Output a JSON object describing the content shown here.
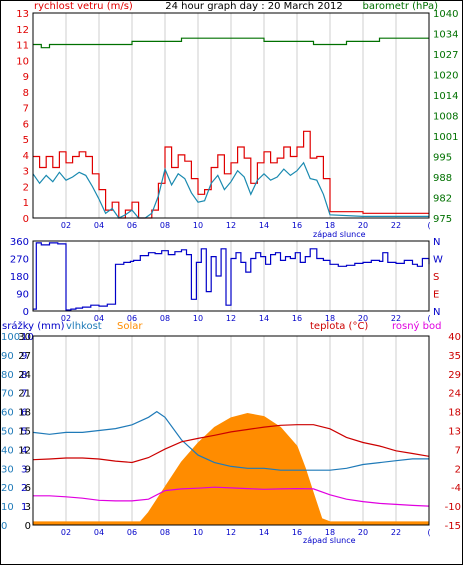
{
  "colors": {
    "wind": "#e00000",
    "wind_gust_line": "#1a8ab0",
    "barometer": "#007000",
    "direction": "#0000c8",
    "blue_axis": "#0000c8",
    "precip": "#0000c8",
    "humidity": "#1f7ab8",
    "solar": "#ff8c00",
    "temperature": "#cc0000",
    "dewpoint": "#e000e0",
    "grid": "#cfcfcf"
  },
  "chart_data": [
    {
      "type": "line",
      "panel": "wind-barometer",
      "title": "24 hour graph day : 20 March 2012",
      "ylabel_left": "rychlost vetru (m/s)",
      "ylabel_right": "barometr (hPa)",
      "sunset_label": "západ slunce",
      "x_ticks": [
        "02",
        "04",
        "06",
        "08",
        "10",
        "12",
        "14",
        "16",
        "18",
        "20",
        "22",
        "("
      ],
      "y_ticks_left": [
        "0",
        "1",
        "2",
        "3",
        "4",
        "5",
        "6",
        "7",
        "8",
        "9",
        "10",
        "11",
        "12",
        "13"
      ],
      "y_ticks_right": [
        "975",
        "982",
        "988",
        "995",
        "1001",
        "1008",
        "1014",
        "1020",
        "1027",
        "1034",
        "1040"
      ],
      "ylim_left": [
        0,
        13
      ],
      "ylim_right": [
        975,
        1040
      ],
      "grid": true,
      "series": [
        {
          "role": "wind-gust",
          "x": [
            0,
            0.4,
            0.8,
            1.2,
            1.6,
            2,
            2.4,
            2.8,
            3.2,
            3.6,
            4,
            4.4,
            4.8,
            5.2,
            5.6,
            6,
            6.4,
            6.8,
            7.2,
            7.6,
            8,
            8.4,
            8.8,
            9.2,
            9.6,
            10,
            10.4,
            10.8,
            11.2,
            11.6,
            12,
            12.4,
            12.8,
            13.2,
            13.6,
            14,
            14.4,
            14.8,
            15.2,
            15.6,
            16,
            16.4,
            16.8,
            17.2,
            17.6,
            18,
            20,
            22,
            24
          ],
          "values": [
            3.9,
            3.2,
            3.9,
            3.2,
            4.2,
            3.5,
            3.9,
            4.2,
            3.9,
            2.8,
            1.8,
            0.5,
            1,
            0,
            0.5,
            1,
            0,
            0,
            0.5,
            2.2,
            4.5,
            3.2,
            4,
            3.6,
            2.5,
            1.5,
            1.8,
            3.2,
            4,
            2.8,
            3.5,
            4.5,
            3.8,
            2.2,
            3.5,
            4.2,
            3.5,
            3.8,
            4.5,
            3.9,
            4.5,
            5.5,
            3.8,
            3.9,
            2.5,
            0.4,
            0.3,
            0.3,
            0.3
          ]
        },
        {
          "role": "wind-speed",
          "x": [
            0,
            0.4,
            0.8,
            1.2,
            1.6,
            2,
            2.4,
            2.8,
            3.2,
            3.6,
            4,
            4.4,
            4.8,
            5.2,
            5.6,
            6,
            6.4,
            6.8,
            7.2,
            7.6,
            8,
            8.4,
            8.8,
            9.2,
            9.6,
            10,
            10.4,
            10.8,
            11.2,
            11.6,
            12,
            12.4,
            12.8,
            13.2,
            13.6,
            14,
            14.4,
            14.8,
            15.2,
            15.6,
            16,
            16.4,
            16.8,
            17.2,
            17.6,
            18,
            20,
            22,
            24
          ],
          "values": [
            2.8,
            2.2,
            2.7,
            2.3,
            2.9,
            2.4,
            2.6,
            2.9,
            2.7,
            2,
            1.2,
            0.3,
            0.6,
            0,
            0.2,
            0.5,
            0,
            0,
            0.3,
            1.4,
            3.1,
            2.1,
            2.8,
            2.5,
            1.6,
            1,
            1.1,
            2.2,
            2.7,
            1.8,
            2.3,
            3,
            2.6,
            1.5,
            2.4,
            2.8,
            2.4,
            2.6,
            3.1,
            2.7,
            3,
            3.5,
            2.5,
            2.4,
            1.5,
            0.2,
            0.1,
            0.1,
            0.1
          ]
        },
        {
          "role": "barometer",
          "x": [
            0,
            0.5,
            1,
            2,
            3,
            4,
            5,
            6,
            7,
            8,
            9,
            10,
            11,
            12,
            13,
            14,
            15,
            16,
            17,
            18,
            19,
            20,
            21,
            22,
            23,
            24
          ],
          "values": [
            1030,
            1029,
            1030,
            1030,
            1030,
            1030,
            1030,
            1031,
            1031,
            1031,
            1032,
            1032,
            1032,
            1032,
            1032,
            1031,
            1031,
            1031,
            1030,
            1030,
            1031,
            1031,
            1032,
            1032,
            1032,
            1032
          ]
        }
      ]
    },
    {
      "type": "line",
      "panel": "wind-direction",
      "x_ticks": [
        "02",
        "04",
        "06",
        "08",
        "10",
        "12",
        "14",
        "16",
        "18",
        "20",
        "22",
        "("
      ],
      "y_ticks_left": [
        "0",
        "90",
        "180",
        "270",
        "360"
      ],
      "y_ticks_right": [
        "N",
        "E",
        "S",
        "W",
        "N"
      ],
      "ylim": [
        0,
        360
      ],
      "grid": true,
      "series": [
        {
          "role": "direction",
          "x": [
            0,
            0.2,
            0.5,
            1,
            1.5,
            2,
            2.3,
            2.6,
            3,
            3.5,
            4,
            4.5,
            5,
            5.5,
            5.9,
            6.1,
            6.5,
            7,
            7.4,
            7.8,
            8.2,
            8.6,
            9,
            9.3,
            9.6,
            9.9,
            10.2,
            10.5,
            10.8,
            11.1,
            11.4,
            11.7,
            12,
            12.3,
            12.6,
            12.9,
            13.2,
            13.5,
            13.8,
            14.1,
            14.4,
            14.7,
            15,
            15.3,
            15.6,
            15.9,
            16.2,
            16.5,
            16.8,
            17.2,
            17.6,
            18,
            18.5,
            19,
            19.5,
            20,
            20.5,
            21,
            21.2,
            21.5,
            22,
            22.5,
            23,
            23.3,
            23.6,
            24
          ],
          "values": [
            10,
            350,
            340,
            350,
            345,
            5,
            10,
            15,
            20,
            30,
            25,
            35,
            240,
            250,
            255,
            260,
            285,
            300,
            295,
            310,
            290,
            305,
            315,
            290,
            60,
            250,
            320,
            100,
            280,
            180,
            320,
            30,
            270,
            300,
            250,
            200,
            270,
            300,
            280,
            240,
            290,
            300,
            260,
            280,
            270,
            300,
            250,
            280,
            320,
            270,
            260,
            240,
            230,
            235,
            245,
            250,
            260,
            255,
            300,
            250,
            245,
            260,
            240,
            230,
            270,
            240
          ]
        }
      ]
    },
    {
      "type": "area",
      "panel": "temperature-humidity-solar",
      "legend": [
        "srážky (mm)",
        "vlhkost",
        "Solar",
        "teplota (°C)",
        "rosný bod"
      ],
      "sunset_label": "západ slunce",
      "x_ticks": [
        "02",
        "04",
        "06",
        "08",
        "10",
        "12",
        "14",
        "16",
        "18",
        "20",
        "22",
        "("
      ],
      "y_ticks_precip": [
        "0",
        "1",
        "2",
        "3",
        "4",
        "5",
        "6",
        "7",
        "8",
        "9",
        "10"
      ],
      "y_ticks_humidity": [
        "0",
        "10",
        "20",
        "30",
        "40",
        "50",
        "60",
        "70",
        "80",
        "90",
        "100"
      ],
      "y_ticks_solar": [
        "0",
        "3",
        "6",
        "9",
        "12",
        "15",
        "18",
        "21",
        "24",
        "27",
        "30"
      ],
      "y_ticks_temp": [
        "-15",
        "-10",
        "-4",
        "2",
        "7",
        "13",
        "18",
        "24",
        "29",
        "35",
        "40"
      ],
      "y_ticks_dew": [
        "-15",
        "-10",
        "-4",
        "2",
        "7",
        "13",
        "18",
        "24",
        "29",
        "35",
        "40"
      ],
      "ylim_humidity": [
        0,
        100
      ],
      "ylim_temp": [
        -15,
        40
      ],
      "ylim_solar": [
        0,
        30
      ],
      "grid": true,
      "series": [
        {
          "role": "solar",
          "x": [
            0,
            6.5,
            7,
            8,
            9,
            10,
            11,
            12,
            13,
            14,
            15,
            16,
            16.5,
            17,
            17.5,
            18,
            24
          ],
          "values": [
            0.5,
            0.5,
            2,
            6,
            10,
            13,
            15.5,
            17,
            17.7,
            17.2,
            15.5,
            12.5,
            9,
            5,
            1,
            0.5,
            0.5
          ]
        },
        {
          "role": "humidity",
          "x": [
            0,
            1,
            2,
            3,
            4,
            5,
            6,
            7,
            7.5,
            8,
            9,
            10,
            11,
            12,
            13,
            14,
            15,
            16,
            17,
            18,
            19,
            20,
            21,
            22,
            23,
            24
          ],
          "values": [
            49,
            48,
            49,
            49,
            50,
            51,
            53,
            57,
            60,
            57,
            45,
            37,
            33,
            31,
            30,
            30,
            29,
            29,
            29,
            29,
            30,
            32,
            33,
            34,
            35,
            35
          ]
        },
        {
          "role": "temperature",
          "x": [
            0,
            1,
            2,
            3,
            4,
            5,
            6,
            7,
            8,
            9,
            10,
            11,
            12,
            13,
            14,
            15,
            16,
            17,
            18,
            19,
            20,
            21,
            22,
            23,
            24
          ],
          "values": [
            4,
            4.2,
            4.5,
            4.5,
            4.2,
            3.6,
            3.2,
            4.6,
            7.1,
            9.2,
            10.2,
            11.1,
            12.1,
            12.8,
            13.5,
            14,
            14.2,
            14.2,
            13,
            10.5,
            9,
            8,
            6.6,
            5.8,
            5
          ]
        },
        {
          "role": "dewpoint",
          "x": [
            0,
            1,
            2,
            3,
            4,
            5,
            6,
            7,
            8,
            9,
            10,
            11,
            12,
            13,
            14,
            15,
            16,
            17,
            18,
            19,
            20,
            21,
            22,
            23,
            24
          ],
          "values": [
            -6.5,
            -6.5,
            -6.8,
            -7.2,
            -7.8,
            -8,
            -8,
            -7.5,
            -5,
            -4.5,
            -4.3,
            -4,
            -4.2,
            -4.4,
            -4.6,
            -4.5,
            -4.4,
            -4.5,
            -6.2,
            -7.5,
            -8.2,
            -8.7,
            -9,
            -9.3,
            -9.5
          ]
        }
      ]
    }
  ]
}
